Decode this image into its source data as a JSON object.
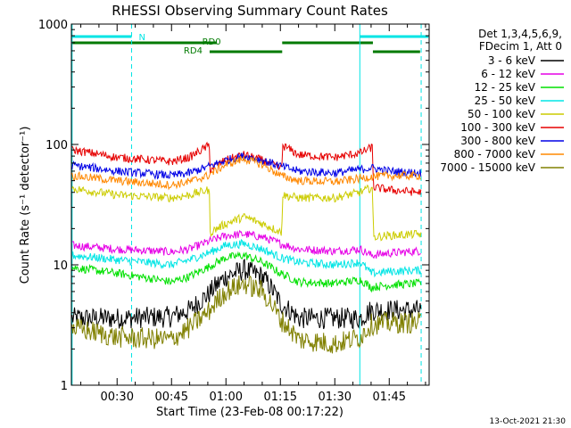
{
  "colors": {
    "background": "#ffffff",
    "axes": "#000000",
    "orbit_marker": "#00e5e5",
    "attenuator_marker": "#007a00"
  },
  "chart_data": {
    "type": "line",
    "title": "RHESSI Observing Summary Count Rates",
    "xlabel": "Start Time (23-Feb-08 00:17:22)",
    "ylabel": "Count Rate (s⁻¹ detector⁻¹)",
    "y_scale": "log",
    "ylim": [
      1,
      1000
    ],
    "xlim_minutes": [
      17.4,
      116
    ],
    "x_ticks": [
      {
        "value": 30,
        "label": "00:30"
      },
      {
        "value": 45,
        "label": "00:45"
      },
      {
        "value": 60,
        "label": "01:00"
      },
      {
        "value": 75,
        "label": "01:15"
      },
      {
        "value": 90,
        "label": "01:30"
      },
      {
        "value": 105,
        "label": "01:45"
      }
    ],
    "y_ticks": [
      {
        "value": 1,
        "label": "1"
      },
      {
        "value": 10,
        "label": "10"
      },
      {
        "value": 100,
        "label": "100"
      },
      {
        "value": 1000,
        "label": "1000"
      }
    ],
    "legend_position": "top-right",
    "legend_header": [
      "Det 1,3,4,5,6,9,",
      "FDecim 1, Att 0"
    ],
    "timestamp": "13-Oct-2021 21:30",
    "vlines": [
      {
        "x": 17.6,
        "style": "solid"
      },
      {
        "x": 34.0,
        "style": "dashed"
      },
      {
        "x": 96.9,
        "style": "solid"
      },
      {
        "x": 113.8,
        "style": "dashed"
      }
    ],
    "state_bars": [
      {
        "label": "N",
        "row": "N",
        "color": "#00e5e5",
        "segments": [
          [
            17.6,
            34
          ],
          [
            96.9,
            115.8
          ]
        ]
      },
      {
        "label": "RD0",
        "row": "RD0",
        "color": "#007a00",
        "segments": [
          [
            17.6,
            57.5
          ],
          [
            75.5,
            100.5
          ]
        ]
      },
      {
        "label": "RD4",
        "row": "RD4",
        "color": "#007a00",
        "segments": [
          [
            55.5,
            75.5
          ],
          [
            100.5,
            113.5
          ]
        ]
      }
    ],
    "series": [
      {
        "name": "3 - 6 keV",
        "color": "#000000",
        "x": [
          17.6,
          30,
          45,
          50,
          55,
          60,
          65,
          70,
          75,
          80,
          90,
          97,
          100,
          105,
          113
        ],
        "y": [
          3.6,
          3.6,
          3.7,
          4.2,
          5.6,
          8.0,
          9.1,
          8.0,
          4.8,
          3.6,
          3.6,
          3.6,
          4.2,
          4.2,
          4.2
        ]
      },
      {
        "name": "6 - 12 keV",
        "color": "#e600e6",
        "x": [
          17.6,
          30,
          45,
          50,
          55,
          60,
          65,
          70,
          75,
          80,
          90,
          97,
          100,
          105,
          113
        ],
        "y": [
          14.5,
          13.5,
          12.8,
          13.5,
          15.5,
          17.5,
          18.0,
          17.0,
          15.0,
          13.5,
          13.0,
          13.5,
          12.0,
          12.5,
          13.0
        ]
      },
      {
        "name": "12 - 25 keV",
        "color": "#00e000",
        "x": [
          17.6,
          30,
          45,
          50,
          55,
          60,
          65,
          70,
          75,
          80,
          90,
          97,
          100,
          105,
          113
        ],
        "y": [
          9.5,
          8.5,
          7.2,
          8.0,
          9.5,
          11.5,
          12.0,
          10.5,
          8.5,
          7.2,
          7.0,
          7.5,
          6.5,
          6.8,
          7.0
        ]
      },
      {
        "name": "25 - 50 keV",
        "color": "#00e5e5",
        "x": [
          17.6,
          30,
          45,
          50,
          55,
          60,
          65,
          70,
          75,
          80,
          90,
          97,
          100,
          105,
          113
        ],
        "y": [
          12.0,
          11.0,
          10.0,
          11.0,
          12.5,
          14.5,
          15.0,
          13.5,
          11.5,
          10.5,
          10.0,
          10.5,
          8.5,
          8.8,
          9.0
        ]
      },
      {
        "name": "50 - 100 keV",
        "color": "#cccc00",
        "x": [
          17.6,
          30,
          45,
          50,
          55.4,
          55.6,
          60,
          65,
          70,
          75.4,
          75.6,
          80,
          90,
          97,
          100.4,
          100.6,
          105,
          113
        ],
        "y": [
          43,
          38,
          36,
          38,
          42,
          18.5,
          22,
          25,
          22,
          18.5,
          38,
          36,
          36,
          40,
          44,
          17,
          17.5,
          18
        ]
      },
      {
        "name": "100 - 300 keV",
        "color": "#e60000",
        "x": [
          17.6,
          30,
          45,
          50,
          55.4,
          55.6,
          60,
          65,
          70,
          75.4,
          75.6,
          80,
          90,
          97,
          100.4,
          100.6,
          105,
          113
        ],
        "y": [
          90,
          78,
          72,
          78,
          98,
          62,
          74,
          82,
          74,
          62,
          98,
          82,
          78,
          85,
          95,
          44,
          42,
          40
        ]
      },
      {
        "name": "300 - 800 keV",
        "color": "#0000e6",
        "x": [
          17.6,
          30,
          45,
          50,
          55,
          60,
          65,
          70,
          75,
          80,
          90,
          97,
          100,
          105,
          113
        ],
        "y": [
          67,
          60,
          55,
          58,
          65,
          74,
          80,
          74,
          66,
          60,
          58,
          62,
          64,
          60,
          58
        ]
      },
      {
        "name": "800 - 7000 keV",
        "color": "#ff8800",
        "x": [
          17.6,
          30,
          45,
          50,
          55,
          60,
          65,
          70,
          75,
          80,
          90,
          97,
          100,
          105,
          113
        ],
        "y": [
          55,
          50,
          46,
          49,
          55,
          68,
          76,
          68,
          55,
          50,
          49,
          52,
          54,
          55,
          55
        ]
      },
      {
        "name": "7000 - 15000 keV",
        "color": "#808000",
        "x": [
          17.6,
          30,
          45,
          50,
          55,
          60,
          65,
          70,
          75,
          80,
          90,
          97,
          100,
          105,
          113
        ],
        "y": [
          3.0,
          2.5,
          2.4,
          3.0,
          4.0,
          6.0,
          7.0,
          6.0,
          3.5,
          2.4,
          2.2,
          2.5,
          3.2,
          3.3,
          3.3
        ]
      }
    ]
  }
}
